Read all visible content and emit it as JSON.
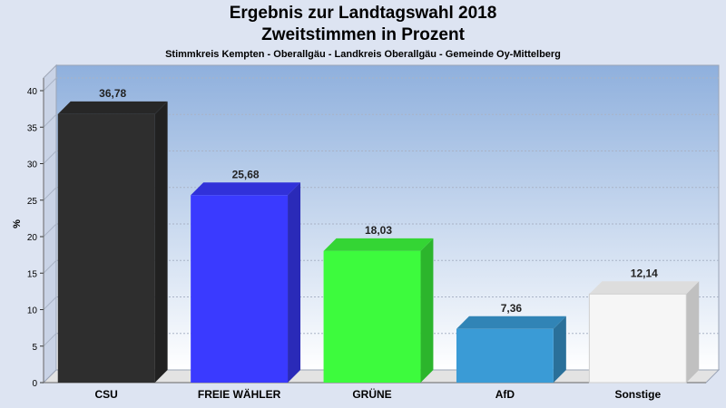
{
  "header": {
    "title": "Ergebnis zur Landtagswahl 2018",
    "subtitle": "Zweitstimmen in Prozent",
    "location": "Stimmkreis Kempten - Oberallgäu - Landkreis Oberallgäu - Gemeinde Oy-Mittelberg"
  },
  "chart_data": {
    "type": "bar",
    "title": "Ergebnis zur Landtagswahl 2018",
    "subtitle": "Zweitstimmen in Prozent",
    "xlabel": "",
    "ylabel": "%",
    "ylim": [
      0,
      40
    ],
    "yticks": [
      0,
      5,
      10,
      15,
      20,
      25,
      30,
      35,
      40
    ],
    "grid": true,
    "categories": [
      "CSU",
      "FREIE WÄHLER",
      "GRÜNE",
      "AfD",
      "Sonstige"
    ],
    "values": [
      36.78,
      25.68,
      18.03,
      7.36,
      12.14
    ],
    "value_labels": [
      "36,78",
      "25,68",
      "18,03",
      "7,36",
      "12,14"
    ],
    "colors": [
      "#2e2e2e",
      "#3a3aff",
      "#3dfb3d",
      "#3a9bd6",
      "#f6f6f6"
    ]
  }
}
